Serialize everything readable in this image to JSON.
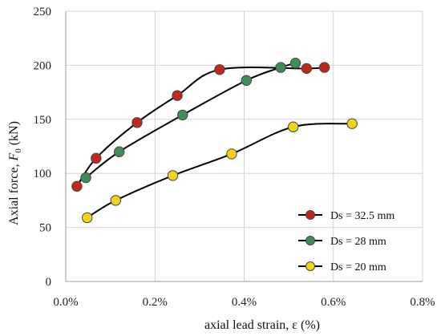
{
  "chart_data": {
    "type": "scatter",
    "title": "",
    "xlabel": "axial lead strain, ε (%)",
    "ylabel": "Axial force, F₀ (kN)",
    "ylabel_parts": {
      "pre": "Axial force, ",
      "var": "F",
      "sub": "0",
      "post": " (kN)"
    },
    "xlim": [
      0.0,
      0.8
    ],
    "ylim": [
      0,
      250
    ],
    "x_ticks": [
      0.0,
      0.2,
      0.4,
      0.6,
      0.8
    ],
    "x_tick_labels": [
      "0.0%",
      "0.2%",
      "0.4%",
      "0.6%",
      "0.8%"
    ],
    "y_ticks": [
      0,
      50,
      100,
      150,
      200,
      250
    ],
    "y_tick_labels": [
      "0",
      "50",
      "100",
      "150",
      "200",
      "250"
    ],
    "grid": true,
    "legend_position": "lower-right",
    "lines_smoothed": true,
    "series": [
      {
        "name": "Ds = 32.5 mm",
        "color": "#c0281c",
        "x": [
          0.025,
          0.068,
          0.16,
          0.25,
          0.345,
          0.54,
          0.58
        ],
        "y": [
          88,
          114,
          147,
          172,
          196,
          197,
          198
        ]
      },
      {
        "name": "Ds = 28 mm",
        "color": "#3f8e5a",
        "x": [
          0.045,
          0.12,
          0.262,
          0.405,
          0.482,
          0.515
        ],
        "y": [
          96,
          120,
          154,
          186,
          198,
          202
        ]
      },
      {
        "name": "Ds = 20 mm",
        "color": "#f2d21a",
        "x": [
          0.048,
          0.112,
          0.24,
          0.372,
          0.51,
          0.642
        ],
        "y": [
          59,
          75,
          98,
          118,
          143,
          146
        ]
      }
    ]
  }
}
